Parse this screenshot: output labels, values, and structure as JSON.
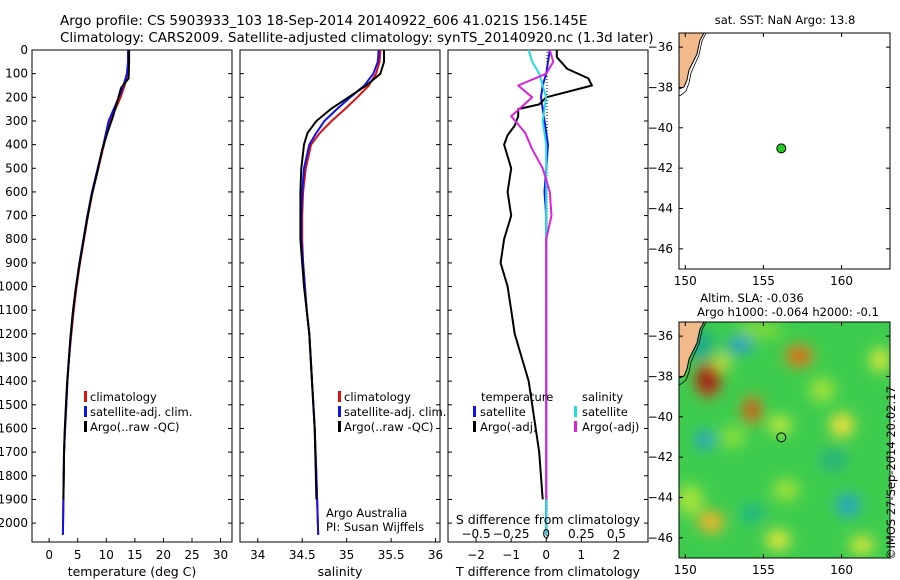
{
  "header": {
    "line1": "Argo profile: CS 5903933_103 18-Sep-2014 20140922_606 41.021S 156.145E",
    "line2": "Climatology: CARS2009. Satellite-adjusted climatology: synTS_20140920.nc (1.3d later)"
  },
  "credits": {
    "org": "Argo Australia",
    "pi": "PI: Susan Wijffels",
    "imos": "©IMOS 27-Sep-2014 20:02:17"
  },
  "colors": {
    "climatology": "#dd1111",
    "satellite": "#1111ee",
    "argo": "#000000",
    "sal_satellite": "#22dddd",
    "sal_argo": "#dd22dd",
    "land": "#f2b98a",
    "marker": "#22cc22"
  },
  "chart_data": [
    {
      "id": "temperature",
      "type": "line",
      "xlabel": "temperature (deg C)",
      "ylabel": "",
      "xlim": [
        -3,
        32
      ],
      "ylim": [
        2080,
        0
      ],
      "xticks": [
        0,
        5,
        10,
        15,
        20,
        25,
        30
      ],
      "yticks": [
        0,
        100,
        200,
        300,
        400,
        500,
        600,
        700,
        800,
        900,
        1000,
        1100,
        1200,
        1300,
        1400,
        1500,
        1600,
        1700,
        1800,
        1900,
        2000
      ],
      "legend": [
        "climatology",
        "satellite-adj. clim.",
        "Argo(..raw -QC)"
      ],
      "series": [
        {
          "name": "climatology",
          "color": "#dd1111",
          "x": [
            13.9,
            13.9,
            13.7,
            13.2,
            12.5,
            11.6,
            10.6,
            9.6,
            8.6,
            7.6,
            6.8,
            6.1,
            5.4,
            4.8,
            4.3,
            3.9,
            3.5,
            3.2,
            3.0,
            2.8,
            2.6,
            2.5,
            2.4
          ],
          "y": [
            0,
            50,
            100,
            150,
            200,
            250,
            300,
            400,
            500,
            600,
            700,
            800,
            900,
            1000,
            1100,
            1200,
            1300,
            1400,
            1500,
            1600,
            1700,
            1900,
            2050
          ]
        },
        {
          "name": "satellite-adj. clim.",
          "color": "#1111ee",
          "x": [
            13.8,
            13.8,
            13.6,
            13.0,
            12.2,
            11.3,
            10.4,
            9.5,
            8.5,
            7.5,
            6.7,
            6.0,
            5.3,
            4.7,
            4.2,
            3.8,
            3.5,
            3.2,
            3.0,
            2.8,
            2.6,
            2.5,
            2.4
          ],
          "y": [
            0,
            50,
            100,
            150,
            200,
            250,
            300,
            400,
            500,
            600,
            700,
            800,
            900,
            1000,
            1100,
            1200,
            1300,
            1400,
            1500,
            1600,
            1700,
            1900,
            2050
          ]
        },
        {
          "name": "Argo(..raw -QC)",
          "color": "#000000",
          "x": [
            14.0,
            14.0,
            13.9,
            12.6,
            11.9,
            11.2,
            10.2,
            9.3,
            8.4,
            7.4,
            6.6,
            5.9,
            5.2,
            4.6,
            4.1,
            3.7,
            3.4,
            3.1,
            2.9,
            2.7,
            2.6,
            2.5
          ],
          "y": [
            0,
            50,
            120,
            160,
            220,
            280,
            350,
            420,
            520,
            620,
            720,
            820,
            920,
            1020,
            1120,
            1220,
            1320,
            1420,
            1520,
            1620,
            1720,
            1900
          ]
        }
      ]
    },
    {
      "id": "salinity",
      "type": "line",
      "xlabel": "salinity",
      "ylabel": "",
      "xlim": [
        33.8,
        36.05
      ],
      "ylim": [
        2080,
        0
      ],
      "xticks": [
        34,
        34.5,
        35,
        35.5,
        36
      ],
      "legend": [
        "climatology",
        "satellite-adj. clim.",
        "Argo(..raw -QC)"
      ],
      "series": [
        {
          "name": "climatology",
          "color": "#dd1111",
          "x": [
            35.38,
            35.37,
            35.33,
            35.25,
            35.12,
            34.98,
            34.83,
            34.7,
            34.6,
            34.54,
            34.51,
            34.5,
            34.5,
            34.51,
            34.53,
            34.55,
            34.58,
            34.61,
            34.64,
            34.66,
            34.68
          ],
          "y": [
            0,
            50,
            100,
            150,
            200,
            250,
            300,
            350,
            400,
            500,
            600,
            700,
            800,
            900,
            1000,
            1100,
            1200,
            1400,
            1600,
            1800,
            2050
          ]
        },
        {
          "name": "satellite-adj. clim.",
          "color": "#1111ee",
          "x": [
            35.36,
            35.35,
            35.3,
            35.2,
            35.04,
            34.89,
            34.75,
            34.66,
            34.58,
            34.52,
            34.5,
            34.49,
            34.49,
            34.51,
            34.53,
            34.55,
            34.58,
            34.61,
            34.64,
            34.66,
            34.68
          ],
          "y": [
            0,
            50,
            100,
            150,
            200,
            250,
            300,
            350,
            400,
            500,
            600,
            700,
            800,
            900,
            1000,
            1100,
            1200,
            1400,
            1600,
            1800,
            2050
          ]
        },
        {
          "name": "Argo(..raw -QC)",
          "color": "#000000",
          "x": [
            35.42,
            35.42,
            35.38,
            35.22,
            35.02,
            34.82,
            34.66,
            34.56,
            34.52,
            34.49,
            34.48,
            34.48,
            34.48,
            34.5,
            34.52,
            34.55,
            34.58,
            34.61,
            34.64,
            34.66
          ],
          "y": [
            0,
            50,
            100,
            150,
            200,
            250,
            300,
            350,
            400,
            500,
            600,
            700,
            800,
            900,
            1000,
            1100,
            1200,
            1400,
            1600,
            1900
          ]
        }
      ]
    },
    {
      "id": "difference",
      "type": "line",
      "xlabel": "T difference from climatology",
      "xlabel2": "S difference from climatology",
      "xlim": [
        -2.8,
        2.9
      ],
      "ylim": [
        2080,
        0
      ],
      "xticks": [
        -2,
        -1,
        0,
        1,
        2
      ],
      "xticks2": [
        -0.5,
        -0.25,
        0,
        0.25,
        0.5
      ],
      "legend_titles": [
        "temperature",
        "salinity"
      ],
      "legend": [
        "satellite",
        "Argo(-adj)",
        "satellite",
        "Argo(-adj)"
      ],
      "series": [
        {
          "name": "temperature satellite",
          "color": "#1111ee",
          "x": [
            0.1,
            0.05,
            0.0,
            -0.1,
            -0.15,
            -0.05,
            0.05,
            0.0,
            -0.05,
            0.0,
            0.0,
            0.0,
            0.0,
            0.0,
            0.0,
            0.0,
            0.0
          ],
          "y": [
            0,
            50,
            100,
            150,
            200,
            300,
            400,
            500,
            600,
            700,
            800,
            1000,
            1200,
            1400,
            1600,
            1800,
            2050
          ]
        },
        {
          "name": "temperature Argo(-adj)",
          "color": "#000000",
          "x": [
            0.3,
            0.3,
            0.6,
            1.2,
            1.3,
            0.0,
            -0.2,
            -0.8,
            -0.8,
            -0.9,
            -1.1,
            -1.2,
            -1.0,
            -1.1,
            -1.0,
            -1.2,
            -1.3,
            -1.1,
            -1.0,
            -0.9,
            -0.7,
            -0.5,
            -0.4,
            -0.3,
            -0.2,
            -0.1
          ],
          "y": [
            0,
            30,
            80,
            120,
            150,
            200,
            230,
            250,
            280,
            320,
            360,
            400,
            500,
            600,
            700,
            800,
            900,
            1000,
            1100,
            1200,
            1300,
            1400,
            1500,
            1600,
            1700,
            1900
          ]
        },
        {
          "name": "salinity satellite",
          "color": "#22dddd",
          "x": [
            -0.5,
            -0.4,
            -0.2,
            -0.1,
            0.0,
            -0.1,
            0.0,
            0.0,
            0.0,
            0.0,
            0.0,
            0.0,
            0.0,
            0.0
          ],
          "y": [
            0,
            50,
            100,
            150,
            200,
            300,
            400,
            600,
            800,
            1000,
            1200,
            1400,
            1600,
            2050
          ]
        },
        {
          "name": "salinity Argo(-adj)",
          "color": "#dd22dd",
          "x": [
            0.1,
            0.2,
            0.0,
            -0.8,
            -0.4,
            -1.0,
            -0.6,
            -0.4,
            -0.1,
            0.1,
            0.15,
            0.0,
            0.0,
            0.0,
            0.0,
            0.0
          ],
          "y": [
            0,
            50,
            100,
            150,
            200,
            280,
            350,
            420,
            500,
            600,
            700,
            800,
            1000,
            1200,
            1600,
            1900
          ]
        }
      ]
    },
    {
      "id": "sst_map",
      "type": "scatter",
      "title": "sat. SST: NaN Argo: 13.8",
      "xlim": [
        149.6,
        163.1
      ],
      "ylim": [
        -47.0,
        -35.3
      ],
      "xticks": [
        150,
        155,
        160
      ],
      "yticks": [
        -36,
        -38,
        -40,
        -42,
        -44,
        -46
      ],
      "points": [
        {
          "lon": 156.145,
          "lat": -41.021
        }
      ]
    },
    {
      "id": "sla_map",
      "type": "heatmap",
      "title": "Altim. SLA: -0.036",
      "subtitle": "Argo h1000: -0.064 h2000: -0.1",
      "xlim": [
        149.6,
        163.1
      ],
      "ylim": [
        -47.0,
        -35.3
      ],
      "xticks": [
        150,
        155,
        160
      ],
      "yticks": [
        -36,
        -38,
        -40,
        -42,
        -44,
        -46
      ],
      "points": [
        {
          "lon": 156.145,
          "lat": -41.021
        }
      ]
    }
  ]
}
